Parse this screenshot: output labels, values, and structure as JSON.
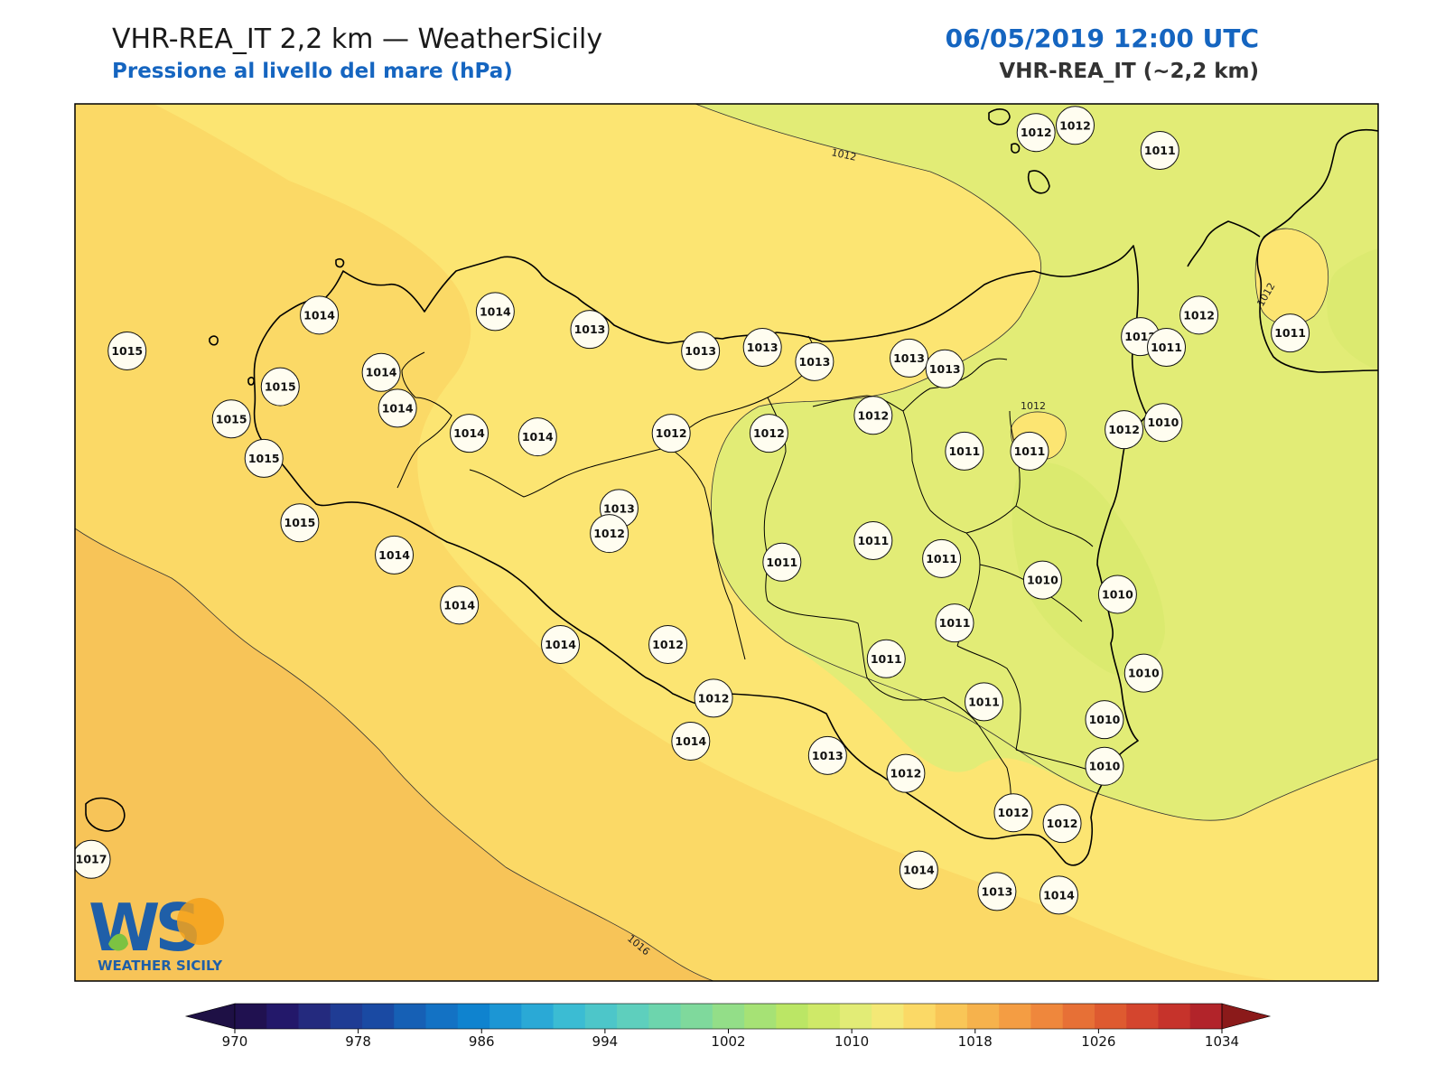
{
  "header": {
    "title": "VHR-REA_IT 2,2 km — WeatherSicily",
    "subtitle": "Pressione al livello del mare (hPa)",
    "datetime": "06/05/2019 12:00 UTC",
    "model": "VHR-REA_IT (~2,2 km)"
  },
  "colorbar": {
    "ticks": [
      "970",
      "978",
      "986",
      "994",
      "1002",
      "1010",
      "1018",
      "1026",
      "1034"
    ],
    "min": 970,
    "max": 1034,
    "step": 2,
    "colors": [
      "#201150",
      "#23186a",
      "#242a7e",
      "#1f3c94",
      "#1a4aa3",
      "#1660b5",
      "#1372c4",
      "#0f83cf",
      "#1c96d4",
      "#2aa9d6",
      "#3bbcd3",
      "#4dc6c9",
      "#5ecfbd",
      "#6dd5ad",
      "#7fd99c",
      "#93de88",
      "#a6e275",
      "#bbe665",
      "#cfe968",
      "#e2ec76",
      "#f4e876",
      "#fbd966",
      "#f9c657",
      "#f6b24c",
      "#f49d43",
      "#ef873c",
      "#e77036",
      "#de5a30",
      "#d4452e",
      "#c6332b",
      "#b2242a"
    ],
    "under_color": "#1e1045",
    "over_color": "#8b1a1a"
  },
  "map": {
    "contours": [
      "1012",
      "1012",
      "1016",
      "1012"
    ],
    "stations": [
      {
        "v": "1012",
        "lon": 14.85,
        "lat": 38.82
      },
      {
        "v": "1012",
        "lon": 14.97,
        "lat": 38.84
      },
      {
        "v": "1011",
        "lon": 15.23,
        "lat": 38.77
      },
      {
        "v": "1014",
        "lon": 12.65,
        "lat": 38.31
      },
      {
        "v": "1014",
        "lon": 13.19,
        "lat": 38.32
      },
      {
        "v": "1013",
        "lon": 13.48,
        "lat": 38.27
      },
      {
        "v": "1013",
        "lon": 13.82,
        "lat": 38.21
      },
      {
        "v": "1013",
        "lon": 14.01,
        "lat": 38.22
      },
      {
        "v": "1013",
        "lon": 14.17,
        "lat": 38.18
      },
      {
        "v": "1013",
        "lon": 14.46,
        "lat": 38.19
      },
      {
        "v": "1013",
        "lon": 14.57,
        "lat": 38.16
      },
      {
        "v": "1012",
        "lon": 15.17,
        "lat": 38.25
      },
      {
        "v": "1011",
        "lon": 15.25,
        "lat": 38.22
      },
      {
        "v": "1012",
        "lon": 15.35,
        "lat": 38.31
      },
      {
        "v": "1011",
        "lon": 15.63,
        "lat": 38.26
      },
      {
        "v": "1015",
        "lon": 12.06,
        "lat": 38.21
      },
      {
        "v": "1015",
        "lon": 12.38,
        "lat": 38.02
      },
      {
        "v": "1015",
        "lon": 12.53,
        "lat": 38.11
      },
      {
        "v": "1014",
        "lon": 12.84,
        "lat": 38.15
      },
      {
        "v": "1015",
        "lon": 12.48,
        "lat": 37.91
      },
      {
        "v": "1014",
        "lon": 12.89,
        "lat": 38.05
      },
      {
        "v": "1014",
        "lon": 13.11,
        "lat": 37.98
      },
      {
        "v": "1014",
        "lon": 13.32,
        "lat": 37.97
      },
      {
        "v": "1012",
        "lon": 13.73,
        "lat": 37.98
      },
      {
        "v": "1012",
        "lon": 14.03,
        "lat": 37.98
      },
      {
        "v": "1012",
        "lon": 14.35,
        "lat": 38.03
      },
      {
        "v": "1011",
        "lon": 14.63,
        "lat": 37.93
      },
      {
        "v": "1011",
        "lon": 14.83,
        "lat": 37.93
      },
      {
        "v": "1012",
        "lon": 15.12,
        "lat": 37.99
      },
      {
        "v": "1010",
        "lon": 15.24,
        "lat": 38.01
      },
      {
        "v": "1015",
        "lon": 12.59,
        "lat": 37.73
      },
      {
        "v": "1013",
        "lon": 13.57,
        "lat": 37.77
      },
      {
        "v": "1014",
        "lon": 12.88,
        "lat": 37.64
      },
      {
        "v": "1012",
        "lon": 13.54,
        "lat": 37.7
      },
      {
        "v": "1011",
        "lon": 14.07,
        "lat": 37.62
      },
      {
        "v": "1011",
        "lon": 14.35,
        "lat": 37.68
      },
      {
        "v": "1011",
        "lon": 14.56,
        "lat": 37.63
      },
      {
        "v": "1010",
        "lon": 14.87,
        "lat": 37.57
      },
      {
        "v": "1010",
        "lon": 15.1,
        "lat": 37.53
      },
      {
        "v": "1014",
        "lon": 13.08,
        "lat": 37.5
      },
      {
        "v": "1014",
        "lon": 13.39,
        "lat": 37.39
      },
      {
        "v": "1012",
        "lon": 13.72,
        "lat": 37.39
      },
      {
        "v": "1012",
        "lon": 13.86,
        "lat": 37.24
      },
      {
        "v": "1011",
        "lon": 14.39,
        "lat": 37.35
      },
      {
        "v": "1011",
        "lon": 14.6,
        "lat": 37.45
      },
      {
        "v": "1010",
        "lon": 15.18,
        "lat": 37.31
      },
      {
        "v": "1010",
        "lon": 15.06,
        "lat": 37.18
      },
      {
        "v": "1011",
        "lon": 14.69,
        "lat": 37.23
      },
      {
        "v": "1014",
        "lon": 13.79,
        "lat": 37.12
      },
      {
        "v": "1013",
        "lon": 14.21,
        "lat": 37.08
      },
      {
        "v": "1012",
        "lon": 14.45,
        "lat": 37.03
      },
      {
        "v": "1010",
        "lon": 15.06,
        "lat": 37.05
      },
      {
        "v": "1012",
        "lon": 14.78,
        "lat": 36.92
      },
      {
        "v": "1012",
        "lon": 14.93,
        "lat": 36.89
      },
      {
        "v": "1014",
        "lon": 14.49,
        "lat": 36.76
      },
      {
        "v": "1013",
        "lon": 14.73,
        "lat": 36.7
      },
      {
        "v": "1014",
        "lon": 14.92,
        "lat": 36.69
      },
      {
        "v": "1017",
        "lon": 11.95,
        "lat": 36.79
      }
    ]
  },
  "logo": {
    "text": "WEATHER SICILY",
    "monogram": "WS"
  }
}
